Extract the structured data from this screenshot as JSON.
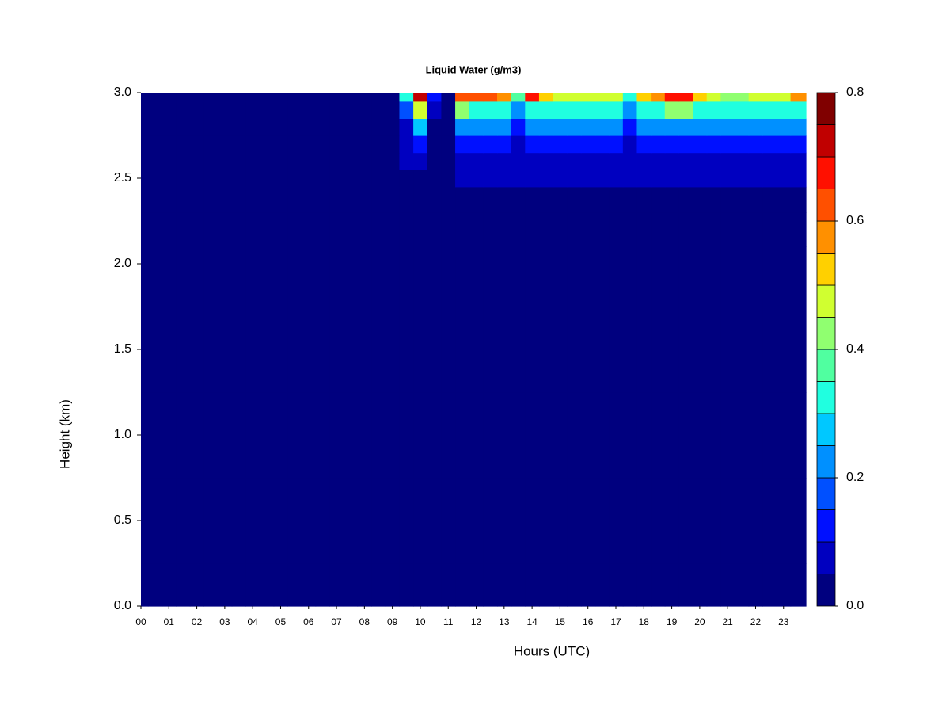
{
  "chart_data": {
    "type": "heatmap",
    "title": "Liquid Water (g/m3)",
    "x_label": "Hours (UTC)",
    "y_label": "Height (km)",
    "x": [
      0,
      0.5,
      1,
      1.5,
      2,
      2.5,
      3,
      3.5,
      4,
      4.5,
      5,
      5.5,
      6,
      6.5,
      7,
      7.5,
      8,
      8.5,
      9,
      9.5,
      10,
      10.5,
      11,
      11.5,
      12,
      12.5,
      13,
      13.5,
      14,
      14.5,
      15,
      15.5,
      16,
      16.5,
      17,
      17.5,
      18,
      18.5,
      19,
      19.5,
      20,
      20.5,
      21,
      21.5,
      22,
      22.5,
      23,
      23.5
    ],
    "y": [
      0,
      0.5,
      1,
      1.5,
      2,
      2.2,
      2.4,
      2.5,
      2.6,
      2.7,
      2.8,
      2.9,
      3
    ],
    "z": [
      [
        0,
        0,
        0,
        0,
        0,
        0,
        0,
        0,
        0,
        0,
        0,
        0,
        0,
        0,
        0,
        0,
        0,
        0,
        0,
        0,
        0,
        0,
        0,
        0,
        0,
        0,
        0,
        0,
        0,
        0,
        0,
        0,
        0,
        0,
        0,
        0,
        0,
        0,
        0,
        0,
        0,
        0,
        0,
        0,
        0,
        0,
        0,
        0
      ],
      [
        0,
        0,
        0,
        0,
        0,
        0,
        0,
        0,
        0,
        0,
        0,
        0,
        0,
        0,
        0,
        0,
        0,
        0,
        0,
        0,
        0,
        0,
        0,
        0,
        0,
        0,
        0,
        0,
        0,
        0,
        0,
        0,
        0,
        0,
        0,
        0,
        0,
        0,
        0,
        0,
        0,
        0,
        0,
        0,
        0,
        0,
        0,
        0
      ],
      [
        0,
        0,
        0,
        0,
        0,
        0,
        0,
        0,
        0,
        0,
        0,
        0,
        0,
        0,
        0,
        0,
        0,
        0,
        0,
        0,
        0,
        0,
        0,
        0,
        0,
        0,
        0,
        0,
        0,
        0,
        0,
        0,
        0,
        0,
        0,
        0,
        0,
        0,
        0,
        0,
        0,
        0,
        0,
        0,
        0,
        0,
        0,
        0
      ],
      [
        0,
        0,
        0,
        0,
        0,
        0,
        0,
        0,
        0,
        0,
        0,
        0,
        0,
        0,
        0,
        0.02,
        0,
        0,
        0,
        0,
        0,
        0,
        0,
        0,
        0,
        0,
        0,
        0,
        0,
        0,
        0,
        0,
        0,
        0,
        0,
        0,
        0,
        0,
        0,
        0,
        0,
        0,
        0,
        0,
        0,
        0,
        0,
        0
      ],
      [
        0,
        0,
        0,
        0,
        0,
        0,
        0,
        0,
        0,
        0,
        0,
        0,
        0,
        0,
        0,
        0,
        0,
        0,
        0,
        0,
        0,
        0,
        0,
        0,
        0,
        0,
        0,
        0,
        0.03,
        0,
        0,
        0,
        0,
        0,
        0,
        0,
        0,
        0,
        0,
        0,
        0,
        0,
        0,
        0,
        0,
        0,
        0,
        0
      ],
      [
        0,
        0,
        0,
        0,
        0,
        0,
        0,
        0,
        0,
        0,
        0,
        0,
        0,
        0,
        0,
        0,
        0,
        0,
        0,
        0,
        0,
        0,
        0,
        0,
        0.01,
        0.01,
        0.01,
        0.01,
        0.04,
        0.01,
        0.01,
        0.01,
        0.01,
        0.01,
        0.01,
        0.01,
        0.01,
        0.01,
        0.01,
        0.01,
        0.01,
        0.01,
        0.01,
        0.01,
        0.01,
        0.01,
        0.01,
        0.01
      ],
      [
        0,
        0,
        0,
        0,
        0,
        0,
        0,
        0,
        0,
        0,
        0,
        0,
        0,
        0,
        0,
        0,
        0,
        0,
        0,
        0,
        0.02,
        0,
        0,
        0.02,
        0.03,
        0.03,
        0.03,
        0.03,
        0.03,
        0.03,
        0.03,
        0.03,
        0.03,
        0.03,
        0.03,
        0.03,
        0.03,
        0.03,
        0.03,
        0.03,
        0.03,
        0.03,
        0.03,
        0.03,
        0.03,
        0.03,
        0.03,
        0.03
      ],
      [
        0,
        0,
        0,
        0,
        0,
        0,
        0,
        0,
        0,
        0,
        0,
        0,
        0,
        0,
        0,
        0,
        0,
        0,
        0,
        0.03,
        0.04,
        0,
        0,
        0.06,
        0.06,
        0.06,
        0.06,
        0.06,
        0.06,
        0.06,
        0.06,
        0.06,
        0.06,
        0.06,
        0.06,
        0.06,
        0.06,
        0.06,
        0.06,
        0.06,
        0.06,
        0.06,
        0.06,
        0.06,
        0.06,
        0.06,
        0.06,
        0.06
      ],
      [
        0,
        0,
        0,
        0,
        0,
        0,
        0,
        0,
        0,
        0,
        0,
        0,
        0,
        0,
        0,
        0,
        0,
        0,
        0,
        0.05,
        0.07,
        0,
        0,
        0.08,
        0.09,
        0.09,
        0.09,
        0.06,
        0.09,
        0.09,
        0.09,
        0.09,
        0.09,
        0.09,
        0.09,
        0.06,
        0.09,
        0.09,
        0.09,
        0.09,
        0.09,
        0.09,
        0.09,
        0.09,
        0.09,
        0.09,
        0.09,
        0.09
      ],
      [
        0,
        0,
        0,
        0,
        0,
        0,
        0,
        0,
        0,
        0,
        0,
        0,
        0,
        0,
        0,
        0,
        0,
        0,
        0,
        0.06,
        0.12,
        0,
        0,
        0.12,
        0.14,
        0.14,
        0.14,
        0.09,
        0.14,
        0.14,
        0.14,
        0.14,
        0.14,
        0.14,
        0.14,
        0.09,
        0.14,
        0.14,
        0.14,
        0.14,
        0.14,
        0.14,
        0.14,
        0.14,
        0.14,
        0.14,
        0.14,
        0.14
      ],
      [
        0,
        0,
        0,
        0,
        0,
        0,
        0,
        0,
        0,
        0,
        0,
        0,
        0,
        0,
        0,
        0,
        0,
        0,
        0,
        0.08,
        0.25,
        0,
        0,
        0.2,
        0.2,
        0.2,
        0.2,
        0.12,
        0.2,
        0.2,
        0.2,
        0.2,
        0.2,
        0.2,
        0.2,
        0.12,
        0.2,
        0.2,
        0.2,
        0.2,
        0.2,
        0.2,
        0.2,
        0.2,
        0.2,
        0.2,
        0.2,
        0.2
      ],
      [
        0,
        0,
        0,
        0,
        0,
        0,
        0,
        0,
        0,
        0,
        0,
        0,
        0,
        0,
        0,
        0,
        0,
        0,
        0,
        0.15,
        0.45,
        0.06,
        0,
        0.4,
        0.33,
        0.33,
        0.33,
        0.2,
        0.33,
        0.33,
        0.33,
        0.33,
        0.33,
        0.33,
        0.33,
        0.2,
        0.33,
        0.33,
        0.4,
        0.4,
        0.33,
        0.33,
        0.33,
        0.33,
        0.33,
        0.33,
        0.33,
        0.33
      ],
      [
        0,
        0,
        0,
        0,
        0,
        0,
        0,
        0,
        0,
        0,
        0,
        0,
        0,
        0,
        0,
        0,
        0,
        0,
        0,
        0.3,
        0.7,
        0.1,
        0,
        0.6,
        0.6,
        0.62,
        0.55,
        0.35,
        0.65,
        0.5,
        0.45,
        0.45,
        0.45,
        0.45,
        0.45,
        0.3,
        0.5,
        0.55,
        0.68,
        0.66,
        0.5,
        0.45,
        0.4,
        0.4,
        0.45,
        0.45,
        0.45,
        0.55
      ]
    ],
    "xlim": [
      0,
      23.8
    ],
    "ylim": [
      0,
      3
    ],
    "xticks": [
      {
        "value": 0,
        "label": "00"
      },
      {
        "value": 1,
        "label": "01"
      },
      {
        "value": 2,
        "label": "02"
      },
      {
        "value": 3,
        "label": "03"
      },
      {
        "value": 4,
        "label": "04"
      },
      {
        "value": 5,
        "label": "05"
      },
      {
        "value": 6,
        "label": "06"
      },
      {
        "value": 7,
        "label": "07"
      },
      {
        "value": 8,
        "label": "08"
      },
      {
        "value": 9,
        "label": "09"
      },
      {
        "value": 10,
        "label": "10"
      },
      {
        "value": 11,
        "label": "11"
      },
      {
        "value": 12,
        "label": "12"
      },
      {
        "value": 13,
        "label": "13"
      },
      {
        "value": 14,
        "label": "14"
      },
      {
        "value": 15,
        "label": "15"
      },
      {
        "value": 16,
        "label": "16"
      },
      {
        "value": 17,
        "label": "17"
      },
      {
        "value": 18,
        "label": "18"
      },
      {
        "value": 19,
        "label": "19"
      },
      {
        "value": 20,
        "label": "20"
      },
      {
        "value": 21,
        "label": "21"
      },
      {
        "value": 22,
        "label": "22"
      },
      {
        "value": 23,
        "label": "23"
      }
    ],
    "yticks": [
      {
        "value": 0,
        "label": "0.0"
      },
      {
        "value": 0.5,
        "label": "0.5"
      },
      {
        "value": 1,
        "label": "1.0"
      },
      {
        "value": 1.5,
        "label": "1.5"
      },
      {
        "value": 2,
        "label": "2.0"
      },
      {
        "value": 2.5,
        "label": "2.5"
      },
      {
        "value": 3,
        "label": "3.0"
      }
    ],
    "zlim": [
      0,
      0.8
    ],
    "zticks": [
      {
        "value": 0,
        "label": "0.0"
      },
      {
        "value": 0.2,
        "label": "0.2"
      },
      {
        "value": 0.4,
        "label": "0.4"
      },
      {
        "value": 0.6,
        "label": "0.6"
      },
      {
        "value": 0.8,
        "label": "0.8"
      }
    ],
    "levels": [
      0,
      0.05,
      0.1,
      0.15,
      0.2,
      0.25,
      0.3,
      0.35,
      0.4,
      0.45,
      0.5,
      0.55,
      0.6,
      0.65,
      0.7,
      0.75,
      0.8
    ],
    "colors": [
      "#00007f",
      "#0000c0",
      "#0010ff",
      "#0050ff",
      "#0090ff",
      "#00c8ff",
      "#20ffe0",
      "#50ffa0",
      "#90ff70",
      "#d0ff30",
      "#ffd000",
      "#ff9000",
      "#ff5000",
      "#ff1000",
      "#c00000",
      "#800000"
    ]
  }
}
